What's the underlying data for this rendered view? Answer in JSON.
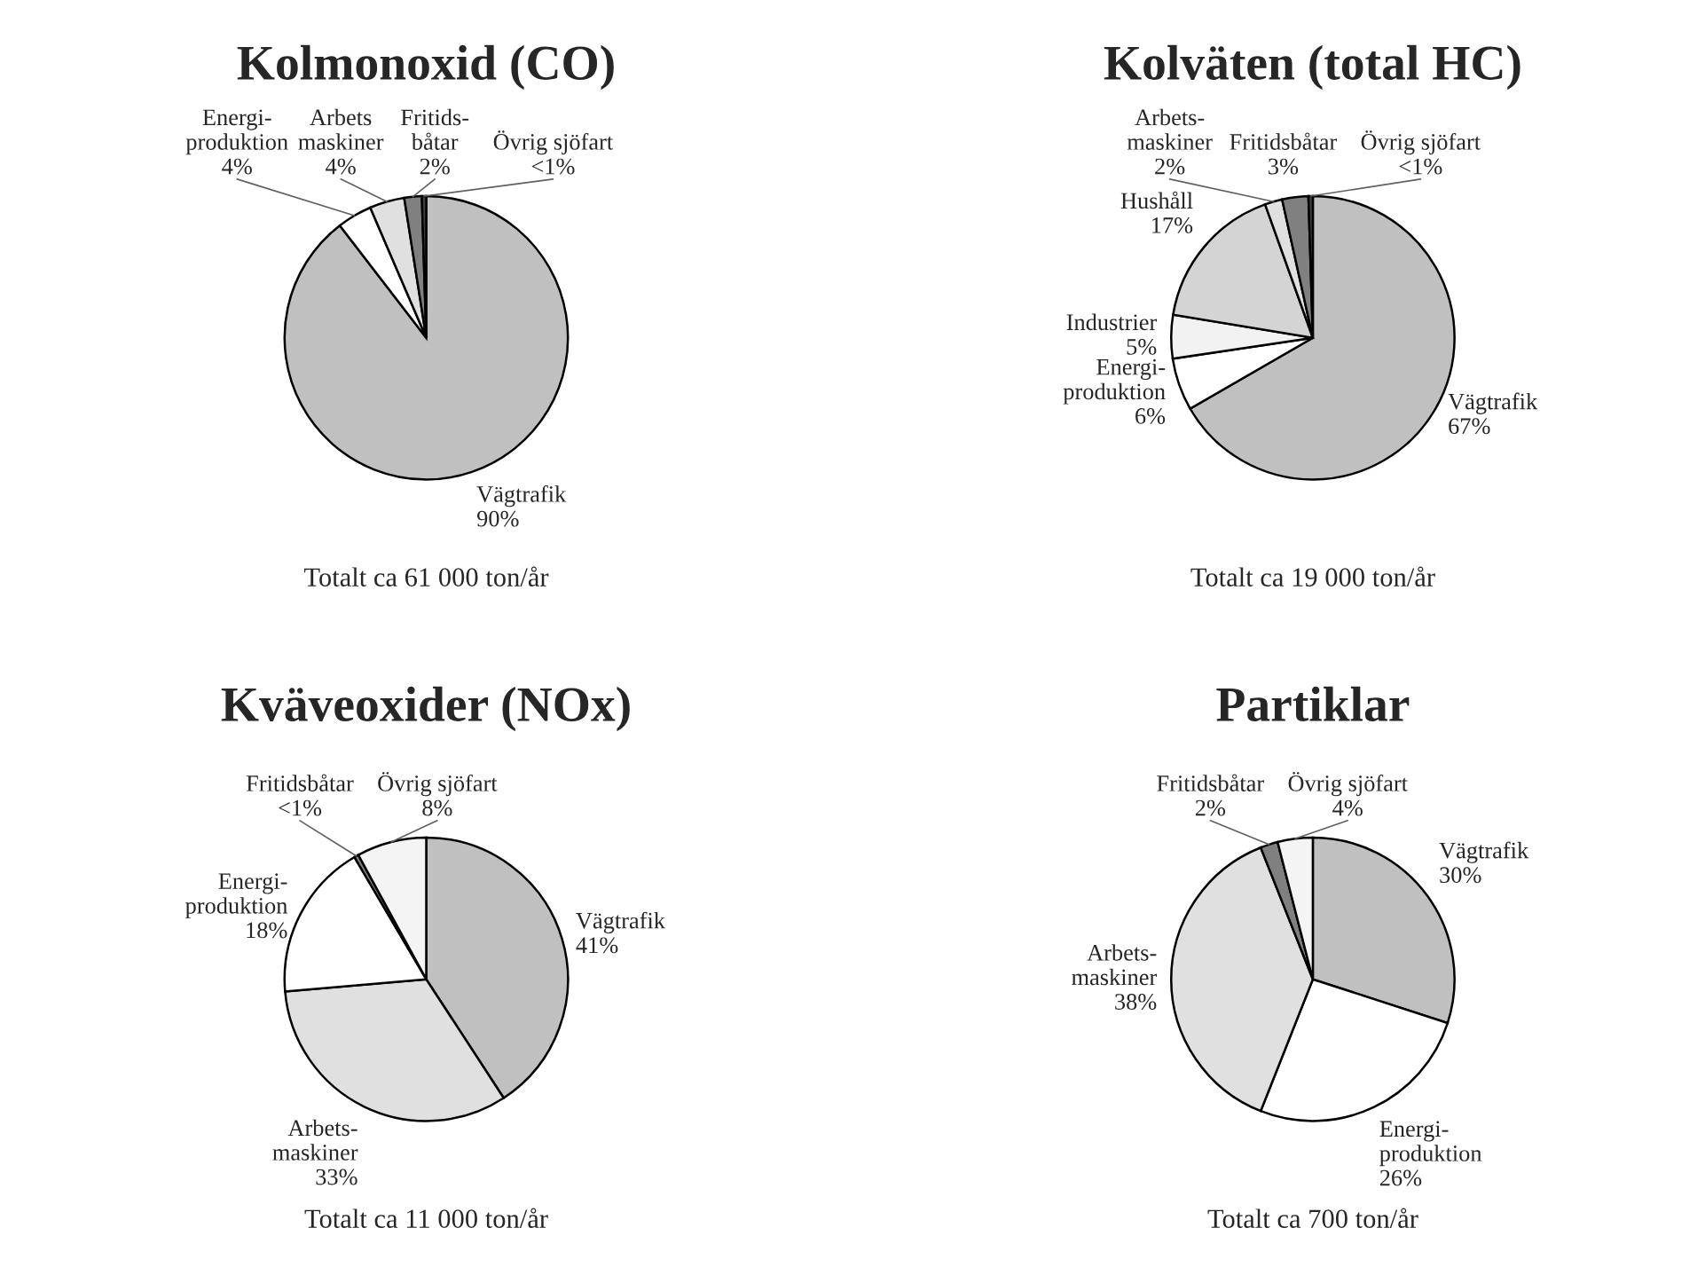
{
  "chart_data": [
    {
      "type": "pie",
      "title": "Kolmonoxid (CO)",
      "categories": [
        "Vägtrafik",
        "Energi-\nproduktion",
        "Arbets\nmaskiner",
        "Fritids-\nbåtar",
        "Övrig sjöfart"
      ],
      "values": [
        90,
        4,
        4,
        2,
        0.5
      ],
      "value_labels": [
        "90%",
        "4%",
        "4%",
        "2%",
        "<1%"
      ],
      "colors": [
        "#c0c0c0",
        "#ffffff",
        "#e0e0e0",
        "#808080",
        "#404040"
      ],
      "annotations": [
        "Totalt ca 61 000 ton/år"
      ]
    },
    {
      "type": "pie",
      "title": "Kolväten (total HC)",
      "categories": [
        "Vägtrafik",
        "Energi-\nproduktion",
        "Industrier",
        "Hushåll",
        "Arbets-\nmaskiner",
        "Fritidsbåtar",
        "Övrig sjöfart"
      ],
      "values": [
        67,
        6,
        5,
        17,
        2,
        3,
        0.5
      ],
      "value_labels": [
        "67%",
        "6%",
        "5%",
        "17%",
        "2%",
        "3%",
        "<1%"
      ],
      "colors": [
        "#c0c0c0",
        "#ffffff",
        "#f2f2f2",
        "#d4d4d4",
        "#e0e0e0",
        "#808080",
        "#404040"
      ],
      "annotations": [
        "Totalt ca 19 000 ton/år"
      ]
    },
    {
      "type": "pie",
      "title": "Kväveoxider (NOx)",
      "categories": [
        "Vägtrafik",
        "Arbets-\nmaskiner",
        "Energi-\nproduktion",
        "Fritidsbåtar",
        "Övrig sjöfart"
      ],
      "values": [
        41,
        33,
        18,
        0.5,
        8
      ],
      "value_labels": [
        "41%",
        "33%",
        "18%",
        "<1%",
        "8%"
      ],
      "colors": [
        "#c0c0c0",
        "#e0e0e0",
        "#ffffff",
        "#808080",
        "#f4f4f4"
      ],
      "annotations": [
        "Totalt ca 11 000 ton/år"
      ]
    },
    {
      "type": "pie",
      "title": "Partiklar",
      "categories": [
        "Vägtrafik",
        "Energi-\nproduktion",
        "Arbets-\nmaskiner",
        "Fritidsbåtar",
        "Övrig sjöfart"
      ],
      "values": [
        30,
        26,
        38,
        2,
        4
      ],
      "value_labels": [
        "30%",
        "26%",
        "38%",
        "2%",
        "4%"
      ],
      "colors": [
        "#c0c0c0",
        "#ffffff",
        "#e0e0e0",
        "#808080",
        "#f4f4f4"
      ],
      "annotations": [
        "Totalt ca 700 ton/år"
      ]
    }
  ]
}
